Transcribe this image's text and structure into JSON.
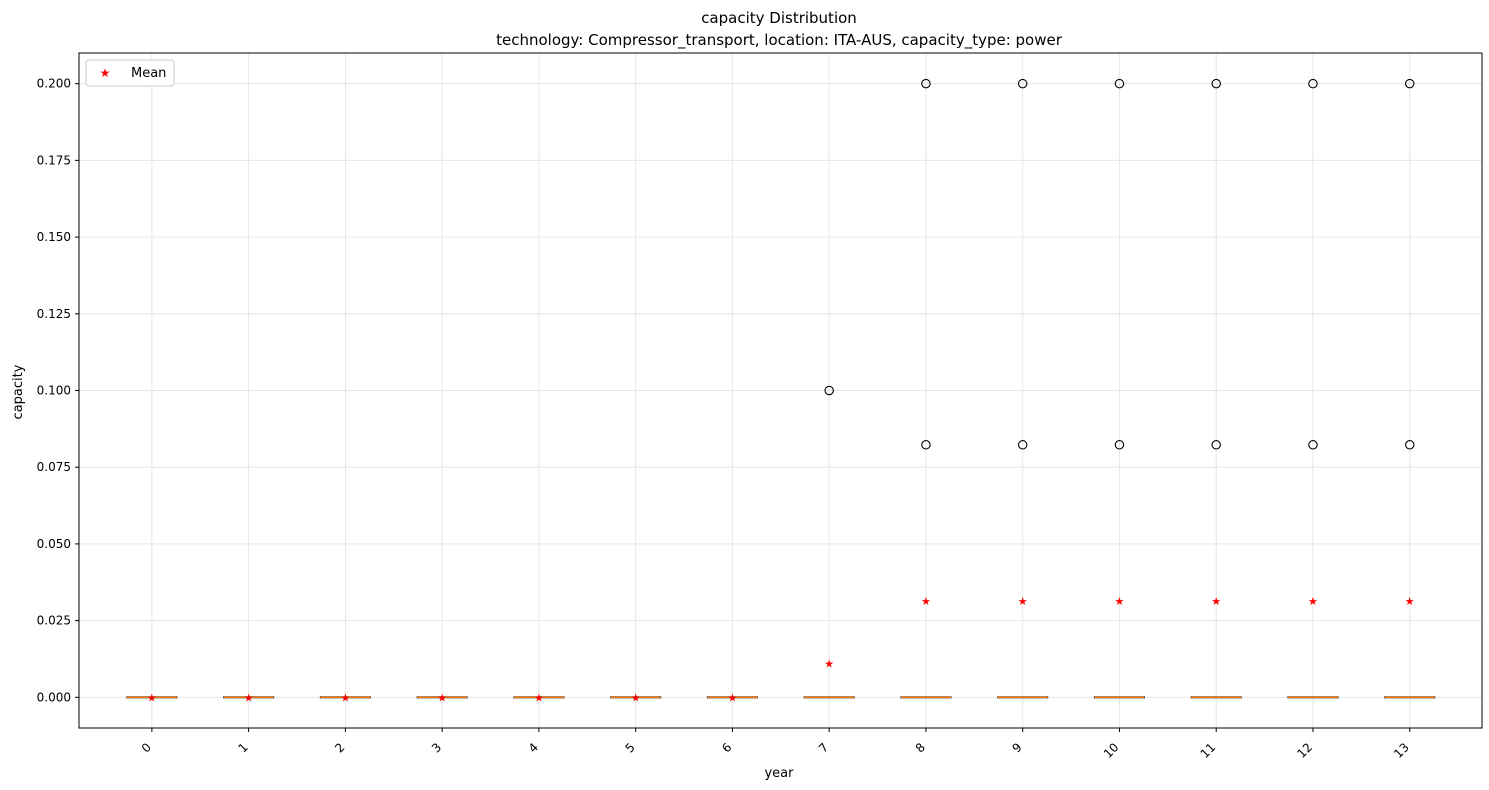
{
  "chart_data": {
    "type": "box",
    "title": "capacity Distribution",
    "subtitle": "technology: Compressor_transport, location: ITA-AUS, capacity_type: power",
    "xlabel": "year",
    "ylabel": "capacity",
    "categories": [
      "0",
      "1",
      "2",
      "3",
      "4",
      "5",
      "6",
      "7",
      "8",
      "9",
      "10",
      "11",
      "12",
      "13"
    ],
    "ylim": [
      -0.01,
      0.21
    ],
    "yticks": [
      "0.000",
      "0.025",
      "0.050",
      "0.075",
      "0.100",
      "0.125",
      "0.150",
      "0.175",
      "0.200"
    ],
    "ytick_values": [
      0,
      0.025,
      0.05,
      0.075,
      0.1,
      0.125,
      0.15,
      0.175,
      0.2
    ],
    "grid": true,
    "legend": {
      "placement": "top-left",
      "entries": [
        {
          "label": "Mean",
          "marker": "red-star-icon"
        }
      ]
    },
    "boxes": [
      {
        "x": "0",
        "q1": 0,
        "median": 0,
        "q3": 0,
        "whisker_low": 0,
        "whisker_high": 0,
        "mean": 0,
        "outliers": []
      },
      {
        "x": "1",
        "q1": 0,
        "median": 0,
        "q3": 0,
        "whisker_low": 0,
        "whisker_high": 0,
        "mean": 0,
        "outliers": []
      },
      {
        "x": "2",
        "q1": 0,
        "median": 0,
        "q3": 0,
        "whisker_low": 0,
        "whisker_high": 0,
        "mean": 0,
        "outliers": []
      },
      {
        "x": "3",
        "q1": 0,
        "median": 0,
        "q3": 0,
        "whisker_low": 0,
        "whisker_high": 0,
        "mean": 0,
        "outliers": []
      },
      {
        "x": "4",
        "q1": 0,
        "median": 0,
        "q3": 0,
        "whisker_low": 0,
        "whisker_high": 0,
        "mean": 0,
        "outliers": []
      },
      {
        "x": "5",
        "q1": 0,
        "median": 0,
        "q3": 0,
        "whisker_low": 0,
        "whisker_high": 0,
        "mean": 0,
        "outliers": []
      },
      {
        "x": "6",
        "q1": 0,
        "median": 0,
        "q3": 0,
        "whisker_low": 0,
        "whisker_high": 0,
        "mean": 0,
        "outliers": []
      },
      {
        "x": "7",
        "q1": 0,
        "median": 0,
        "q3": 0,
        "whisker_low": 0,
        "whisker_high": 0,
        "mean": 0.0111,
        "outliers": [
          0.1
        ]
      },
      {
        "x": "8",
        "q1": 0,
        "median": 0,
        "q3": 0,
        "whisker_low": 0,
        "whisker_high": 0,
        "mean": 0.0314,
        "outliers": [
          0.2,
          0.0823
        ]
      },
      {
        "x": "9",
        "q1": 0,
        "median": 0,
        "q3": 0,
        "whisker_low": 0,
        "whisker_high": 0,
        "mean": 0.0314,
        "outliers": [
          0.2,
          0.0823
        ]
      },
      {
        "x": "10",
        "q1": 0,
        "median": 0,
        "q3": 0,
        "whisker_low": 0,
        "whisker_high": 0,
        "mean": 0.0314,
        "outliers": [
          0.2,
          0.0823
        ]
      },
      {
        "x": "11",
        "q1": 0,
        "median": 0,
        "q3": 0,
        "whisker_low": 0,
        "whisker_high": 0,
        "mean": 0.0314,
        "outliers": [
          0.2,
          0.0823
        ]
      },
      {
        "x": "12",
        "q1": 0,
        "median": 0,
        "q3": 0,
        "whisker_low": 0,
        "whisker_high": 0,
        "mean": 0.0314,
        "outliers": [
          0.2,
          0.0823
        ]
      },
      {
        "x": "13",
        "q1": 0,
        "median": 0,
        "q3": 0,
        "whisker_low": 0,
        "whisker_high": 0,
        "mean": 0.0314,
        "outliers": [
          0.2,
          0.0823
        ]
      }
    ],
    "colors": {
      "mean": "#ff0000",
      "median": "#ff7f0e",
      "box": "#000000",
      "grid": "#e6e6e6",
      "outlier": "#000000"
    }
  }
}
